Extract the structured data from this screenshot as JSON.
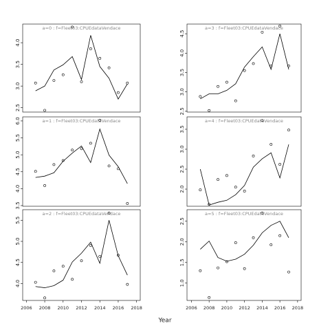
{
  "xlabel": "Year",
  "chart_data": [
    {
      "type": "line",
      "title": "a=0 : f=Fleet03:CPUEdataVendace",
      "x": [
        2007,
        2008,
        2009,
        2010,
        2011,
        2012,
        2013,
        2014,
        2015,
        2016,
        2017
      ],
      "xlim": [
        2005.6,
        2018.4
      ],
      "ylim": [
        2.4,
        4.43
      ],
      "yticks": [
        2.5,
        {
          "value": 3,
          "label": "3.0"
        },
        3.5,
        {
          "value": 4,
          "label": "4.0"
        }
      ],
      "series": [
        {
          "style": "points",
          "color": "#000000",
          "values": [
            3.07,
            2.44,
            3.13,
            3.26,
            4.36,
            3.1,
            3.86,
            3.64,
            3.42,
            2.85,
            3.07
          ]
        },
        {
          "style": "line",
          "color": "#000000",
          "values": [
            2.89,
            3.0,
            3.37,
            3.49,
            3.68,
            3.15,
            4.17,
            3.45,
            3.18,
            2.7,
            3.05
          ]
        }
      ]
    },
    {
      "type": "line",
      "title": "a=1 : f=Fleet03:CPUEdataVendace",
      "x": [
        2007,
        2008,
        2009,
        2010,
        2011,
        2012,
        2013,
        2014,
        2015,
        2016,
        2017
      ],
      "xlim": [
        2005.6,
        2018.4
      ],
      "ylim": [
        3.48,
        6.12
      ],
      "yticks": [
        3.5,
        {
          "value": 4,
          "label": "4.0"
        },
        4.5,
        {
          "value": 5,
          "label": "5.0"
        },
        5.5,
        {
          "value": 6,
          "label": "6.0"
        }
      ],
      "series": [
        {
          "style": "points",
          "color": "#000000",
          "values": [
            4.51,
            4.09,
            4.71,
            4.83,
            5.14,
            5.18,
            5.34,
            6.02,
            4.67,
            4.59,
            3.56
          ]
        },
        {
          "style": "line",
          "color": "#000000",
          "values": [
            4.33,
            4.37,
            4.47,
            4.81,
            5.05,
            5.26,
            4.77,
            5.76,
            4.99,
            4.65,
            4.15
          ]
        }
      ]
    },
    {
      "type": "line",
      "title": "a=2 : f=Fleet03:CPUEdataVendace",
      "x": [
        2007,
        2008,
        2009,
        2010,
        2011,
        2012,
        2013,
        2014,
        2015,
        2016,
        2017
      ],
      "xlim": [
        2005.6,
        2018.4
      ],
      "ylim": [
        3.6,
        5.75
      ],
      "yticks": [
        {
          "value": 4,
          "label": "4.0"
        },
        4.5,
        {
          "value": 5,
          "label": "5.0"
        },
        5.5
      ],
      "xticks": [
        2006,
        2008,
        2010,
        2012,
        2014,
        2016,
        2018
      ],
      "series": [
        {
          "style": "points",
          "color": "#000000",
          "values": [
            4.03,
            3.66,
            4.3,
            4.41,
            4.1,
            4.54,
            4.9,
            4.64,
            5.67,
            4.67,
            3.98
          ]
        },
        {
          "style": "line",
          "color": "#000000",
          "values": [
            3.93,
            3.9,
            3.95,
            4.08,
            4.51,
            4.72,
            4.98,
            4.48,
            5.5,
            4.66,
            4.2
          ]
        }
      ]
    },
    {
      "type": "line",
      "title": "a=3 : f=Fleet03:CPUEdataVendace",
      "x": [
        2007,
        2008,
        2009,
        2010,
        2011,
        2012,
        2013,
        2014,
        2015,
        2016,
        2017
      ],
      "xlim": [
        2005.5,
        2018.4
      ],
      "ylim": [
        2.48,
        4.75
      ],
      "yticks": [
        2.5,
        {
          "value": 3,
          "label": "3.0"
        },
        3.5,
        {
          "value": 4,
          "label": "4.0"
        },
        4.5
      ],
      "series": [
        {
          "style": "points",
          "color": "#000000",
          "values": [
            2.88,
            2.52,
            3.14,
            3.25,
            2.77,
            3.55,
            3.73,
            4.54,
            3.67,
            4.7,
            3.67
          ]
        },
        {
          "style": "line",
          "color": "#000000",
          "values": [
            2.82,
            2.95,
            2.95,
            3.04,
            3.21,
            3.64,
            3.91,
            4.16,
            3.58,
            4.5,
            3.58
          ]
        }
      ]
    },
    {
      "type": "line",
      "title": "a=4 : f=Fleet03:CPUEdataVendace",
      "x": [
        2007,
        2008,
        2009,
        2010,
        2011,
        2012,
        2013,
        2014,
        2015,
        2016,
        2017
      ],
      "xlim": [
        2005.5,
        2018.4
      ],
      "ylim": [
        1.57,
        3.81
      ],
      "yticks": [
        {
          "value": 2,
          "label": "2.0"
        },
        2.5,
        {
          "value": 3,
          "label": "3.0"
        },
        3.5
      ],
      "series": [
        {
          "style": "points",
          "color": "#000000",
          "values": [
            1.98,
            1.62,
            2.24,
            2.34,
            2.05,
            1.95,
            2.83,
            3.72,
            3.12,
            2.62,
            3.48
          ]
        },
        {
          "style": "line",
          "color": "#000000",
          "values": [
            2.5,
            1.6,
            1.67,
            1.72,
            1.86,
            2.09,
            2.55,
            2.76,
            2.91,
            2.28,
            3.12
          ]
        }
      ]
    },
    {
      "type": "line",
      "title": "a=5 : f=Fleet03:CPUEdataVendace",
      "x": [
        2007,
        2008,
        2009,
        2010,
        2011,
        2012,
        2013,
        2014,
        2015,
        2016,
        2017
      ],
      "xlim": [
        2005.5,
        2018.4
      ],
      "ylim": [
        0.58,
        2.78
      ],
      "yticks": [
        {
          "value": 1,
          "label": "1.0"
        },
        1.5,
        {
          "value": 2,
          "label": "2.0"
        },
        2.5
      ],
      "xticks": [
        2006,
        2008,
        2010,
        2012,
        2014,
        2016,
        2018
      ],
      "series": [
        {
          "style": "points",
          "color": "#000000",
          "values": [
            1.3,
            0.65,
            1.37,
            1.52,
            1.98,
            1.35,
            2.1,
            2.7,
            1.93,
            2.15,
            1.27
          ]
        },
        {
          "style": "line",
          "color": "#000000",
          "values": [
            1.82,
            2.02,
            1.62,
            1.53,
            1.58,
            1.7,
            1.92,
            2.22,
            2.4,
            2.5,
            2.1
          ]
        }
      ]
    }
  ]
}
